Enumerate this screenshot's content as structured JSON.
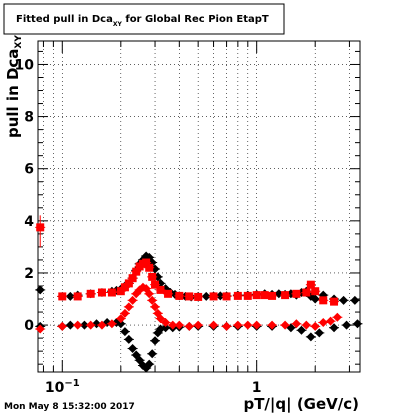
{
  "chart_data": {
    "type": "scatter",
    "title": "Fitted pull in Dca",
    "title_subscript": "XY",
    "title_suffix": " for Global Rec Pion EtapT",
    "ylabel": "pull in Dca",
    "ylabel_subscript": "XY",
    "xlabel": "pT/|q| (GeV/c)",
    "x_scale": "log",
    "xlim": [
      0.075,
      3.4
    ],
    "ylim": [
      -1.8,
      10.9
    ],
    "y_ticks": [
      0,
      2,
      4,
      6,
      8,
      10
    ],
    "x_tick_labels": [
      {
        "value": 0.1,
        "base": "10",
        "exp": "−1"
      },
      {
        "value": 1,
        "base": "1",
        "exp": ""
      }
    ],
    "grid": true,
    "legend": "none",
    "series": [
      {
        "color": "#000000",
        "marker": "diamond",
        "points": [
          [
            0.077,
            1.35
          ],
          [
            0.1,
            1.1
          ],
          [
            0.11,
            1.1
          ],
          [
            0.12,
            1.15
          ],
          [
            0.14,
            1.2
          ],
          [
            0.16,
            1.25
          ],
          [
            0.18,
            1.3
          ],
          [
            0.19,
            1.33
          ],
          [
            0.2,
            1.38
          ],
          [
            0.21,
            1.5
          ],
          [
            0.22,
            1.6
          ],
          [
            0.23,
            1.8
          ],
          [
            0.24,
            2.1
          ],
          [
            0.25,
            2.35
          ],
          [
            0.26,
            2.5
          ],
          [
            0.27,
            2.65
          ],
          [
            0.28,
            2.6
          ],
          [
            0.29,
            2.4
          ],
          [
            0.3,
            2.15
          ],
          [
            0.31,
            1.85
          ],
          [
            0.32,
            1.6
          ],
          [
            0.34,
            1.4
          ],
          [
            0.36,
            1.25
          ],
          [
            0.38,
            1.18
          ],
          [
            0.4,
            1.12
          ],
          [
            0.43,
            1.1
          ],
          [
            0.46,
            1.08
          ],
          [
            0.5,
            1.1
          ],
          [
            0.55,
            1.1
          ],
          [
            0.6,
            1.12
          ],
          [
            0.65,
            1.12
          ],
          [
            0.7,
            1.12
          ],
          [
            0.8,
            1.15
          ],
          [
            0.9,
            1.15
          ],
          [
            1.0,
            1.18
          ],
          [
            1.1,
            1.2
          ],
          [
            1.2,
            1.18
          ],
          [
            1.3,
            1.2
          ],
          [
            1.4,
            1.18
          ],
          [
            1.5,
            1.2
          ],
          [
            1.6,
            1.15
          ],
          [
            1.7,
            1.25
          ],
          [
            1.8,
            1.3
          ],
          [
            1.9,
            1.1
          ],
          [
            2.0,
            1.0
          ],
          [
            2.2,
            1.15
          ],
          [
            2.5,
            1.0
          ],
          [
            2.8,
            0.95
          ],
          [
            3.2,
            0.95
          ],
          [
            0.077,
            -0.05
          ],
          [
            0.1,
            -0.05
          ],
          [
            0.11,
            0.0
          ],
          [
            0.13,
            0.0
          ],
          [
            0.15,
            0.05
          ],
          [
            0.17,
            0.1
          ],
          [
            0.19,
            0.1
          ],
          [
            0.2,
            0.05
          ],
          [
            0.21,
            -0.25
          ],
          [
            0.22,
            -0.55
          ],
          [
            0.23,
            -0.9
          ],
          [
            0.24,
            -1.15
          ],
          [
            0.25,
            -1.35
          ],
          [
            0.26,
            -1.55
          ],
          [
            0.27,
            -1.65
          ],
          [
            0.28,
            -1.5
          ],
          [
            0.29,
            -1.1
          ],
          [
            0.3,
            -0.6
          ],
          [
            0.31,
            -0.3
          ],
          [
            0.32,
            -0.15
          ],
          [
            0.34,
            -0.1
          ],
          [
            0.37,
            -0.1
          ],
          [
            0.4,
            -0.08
          ],
          [
            0.45,
            -0.05
          ],
          [
            0.5,
            -0.05
          ],
          [
            0.6,
            -0.05
          ],
          [
            0.7,
            -0.05
          ],
          [
            0.8,
            -0.05
          ],
          [
            1.0,
            -0.05
          ],
          [
            1.2,
            -0.05
          ],
          [
            1.5,
            -0.1
          ],
          [
            1.7,
            -0.2
          ],
          [
            1.9,
            -0.45
          ],
          [
            2.1,
            -0.3
          ],
          [
            2.5,
            -0.1
          ],
          [
            2.9,
            0.0
          ],
          [
            3.3,
            0.05
          ]
        ]
      },
      {
        "color": "#ff0000",
        "marker": "square",
        "points": [
          [
            0.077,
            3.75
          ],
          [
            0.1,
            1.1
          ],
          [
            0.12,
            1.1
          ],
          [
            0.14,
            1.2
          ],
          [
            0.16,
            1.25
          ],
          [
            0.18,
            1.25
          ],
          [
            0.2,
            1.3
          ],
          [
            0.21,
            1.45
          ],
          [
            0.22,
            1.6
          ],
          [
            0.23,
            1.8
          ],
          [
            0.24,
            2.05
          ],
          [
            0.25,
            2.25
          ],
          [
            0.26,
            2.35
          ],
          [
            0.27,
            2.4
          ],
          [
            0.28,
            2.2
          ],
          [
            0.29,
            1.85
          ],
          [
            0.3,
            1.55
          ],
          [
            0.32,
            1.35
          ],
          [
            0.35,
            1.2
          ],
          [
            0.4,
            1.12
          ],
          [
            0.45,
            1.1
          ],
          [
            0.5,
            1.08
          ],
          [
            0.6,
            1.1
          ],
          [
            0.7,
            1.1
          ],
          [
            0.8,
            1.12
          ],
          [
            0.9,
            1.12
          ],
          [
            1.0,
            1.15
          ],
          [
            1.1,
            1.15
          ],
          [
            1.2,
            1.12
          ],
          [
            1.4,
            1.15
          ],
          [
            1.6,
            1.2
          ],
          [
            1.8,
            1.25
          ],
          [
            1.9,
            1.55
          ],
          [
            2.0,
            1.3
          ],
          [
            2.2,
            0.95
          ],
          [
            2.5,
            0.9
          ]
        ]
      },
      {
        "color": "#ff0000",
        "marker": "diamond",
        "points": [
          [
            0.077,
            -0.15
          ],
          [
            0.1,
            -0.05
          ],
          [
            0.12,
            0.0
          ],
          [
            0.14,
            0.0
          ],
          [
            0.16,
            0.0
          ],
          [
            0.18,
            0.05
          ],
          [
            0.2,
            0.25
          ],
          [
            0.21,
            0.45
          ],
          [
            0.22,
            0.7
          ],
          [
            0.23,
            0.95
          ],
          [
            0.24,
            1.2
          ],
          [
            0.25,
            1.35
          ],
          [
            0.26,
            1.45
          ],
          [
            0.27,
            1.4
          ],
          [
            0.28,
            1.2
          ],
          [
            0.29,
            0.95
          ],
          [
            0.3,
            0.7
          ],
          [
            0.31,
            0.45
          ],
          [
            0.32,
            0.25
          ],
          [
            0.34,
            0.1
          ],
          [
            0.37,
            0.0
          ],
          [
            0.4,
            0.0
          ],
          [
            0.45,
            -0.05
          ],
          [
            0.5,
            0.0
          ],
          [
            0.6,
            0.0
          ],
          [
            0.7,
            -0.05
          ],
          [
            0.8,
            0.0
          ],
          [
            0.9,
            0.0
          ],
          [
            1.0,
            0.0
          ],
          [
            1.2,
            0.0
          ],
          [
            1.4,
            0.0
          ],
          [
            1.6,
            0.05
          ],
          [
            1.8,
            0.0
          ],
          [
            2.0,
            -0.05
          ],
          [
            2.2,
            0.1
          ],
          [
            2.4,
            0.15
          ],
          [
            2.6,
            0.3
          ]
        ]
      }
    ]
  },
  "footer": {
    "timestamp": "Mon May  8 15:32:00 2017"
  }
}
